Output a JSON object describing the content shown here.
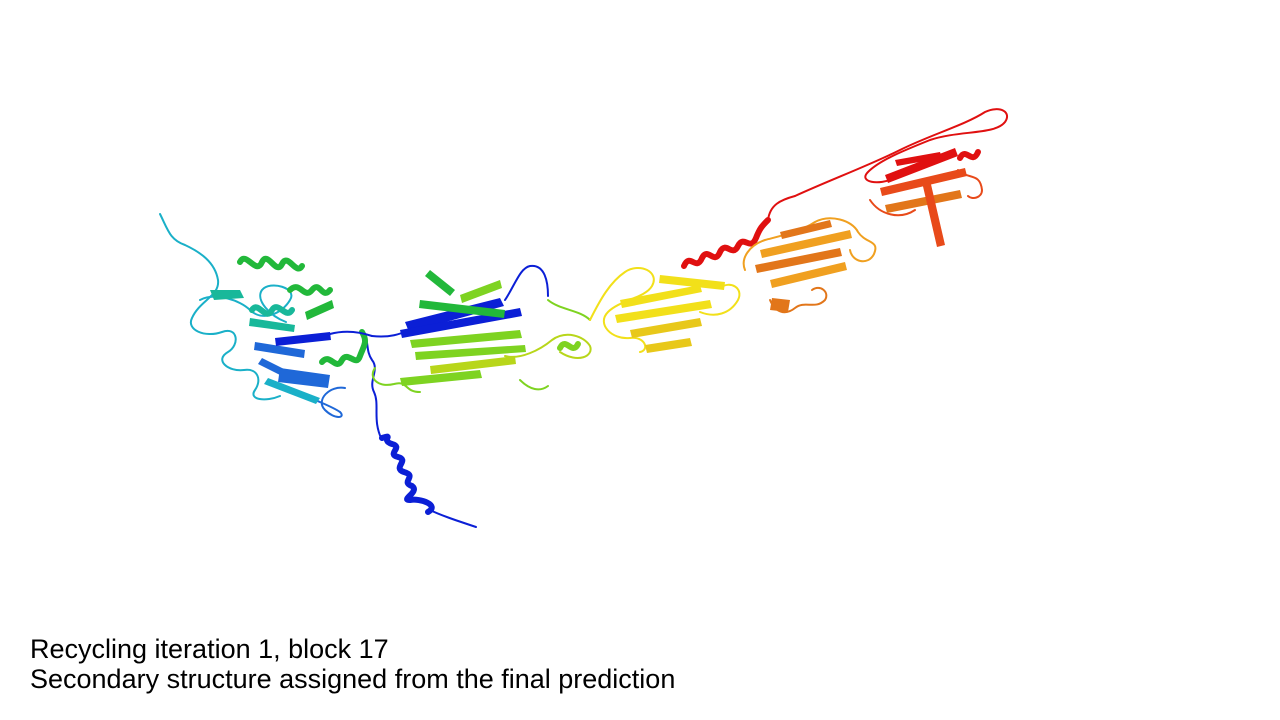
{
  "caption": {
    "line1": "Recycling iteration 1, block 17",
    "line2": "Secondary structure assigned from the final prediction"
  },
  "structure": {
    "coloring": "rainbow N-to-C (blue to red)",
    "palette": {
      "blue": "#0b1fd6",
      "marine": "#1f68d8",
      "cyan": "#1ab0c8",
      "teal": "#18b89a",
      "green": "#22b83a",
      "lime": "#7ed321",
      "yellowgreen": "#b8d61a",
      "yellow": "#f2e01a",
      "orange": "#f0a020",
      "darkorange": "#e2761a",
      "orangered": "#e84a1a",
      "red": "#e01010"
    }
  }
}
